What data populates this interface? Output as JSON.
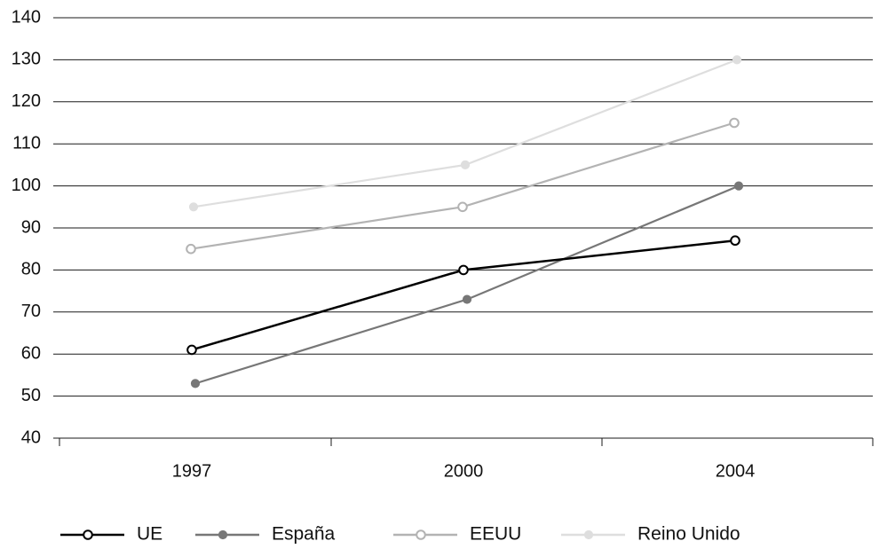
{
  "chart_data": {
    "type": "line",
    "x": [
      "1997",
      "2000",
      "2004"
    ],
    "ylim": [
      40,
      140
    ],
    "yticks": [
      40,
      50,
      60,
      70,
      80,
      90,
      100,
      110,
      120,
      130,
      140
    ],
    "grid": true,
    "legend_position": "bottom",
    "series": [
      {
        "name": "UE",
        "values": [
          61,
          80,
          87
        ],
        "color": "#000000",
        "marker": "open-circle"
      },
      {
        "name": "España",
        "values": [
          53,
          73,
          100
        ],
        "color": "#777777",
        "marker": "filled-circle"
      },
      {
        "name": "EEUU",
        "values": [
          85,
          95,
          115
        ],
        "color": "#b3b3b3",
        "marker": "open-circle"
      },
      {
        "name": "Reino Unido",
        "values": [
          95,
          105,
          130
        ],
        "color": "#dedede",
        "marker": "filled-circle"
      }
    ]
  }
}
